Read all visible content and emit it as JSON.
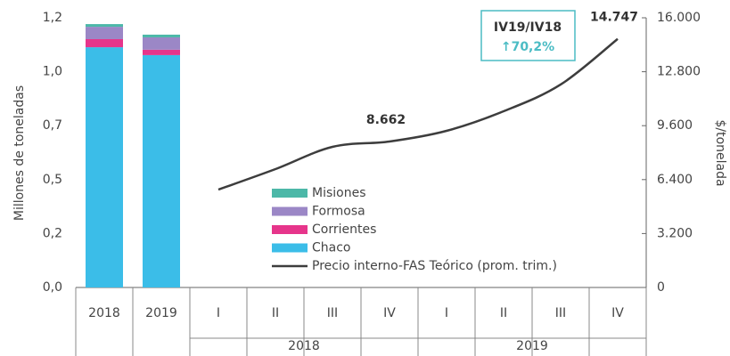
{
  "chart_data": {
    "type": "bar",
    "categories": [
      "2018",
      "2019",
      "I",
      "II",
      "III",
      "IV",
      "I",
      "II",
      "III",
      "IV"
    ],
    "groups": [
      {
        "label": "2018",
        "from": 2,
        "to": 5
      },
      {
        "label": "2019",
        "from": 6,
        "to": 9
      }
    ],
    "series": [
      {
        "name": "Chaco",
        "color": "#3bbde8",
        "values": [
          1.069,
          1.034,
          null,
          null,
          null,
          null,
          null,
          null,
          null,
          null
        ]
      },
      {
        "name": "Corrientes",
        "color": "#e6358b",
        "values": [
          0.036,
          0.024,
          null,
          null,
          null,
          null,
          null,
          null,
          null,
          null
        ]
      },
      {
        "name": "Formosa",
        "color": "#9b87c6",
        "values": [
          0.055,
          0.055,
          null,
          null,
          null,
          null,
          null,
          null,
          null,
          null
        ]
      },
      {
        "name": "Misiones",
        "color": "#4cb8a8",
        "values": [
          0.012,
          0.012,
          null,
          null,
          null,
          null,
          null,
          null,
          null,
          null
        ]
      },
      {
        "name": "Precio interno-FAS Teórico (prom. trim.)",
        "type": "line",
        "axis": "y2",
        "color": "#3d3d3d",
        "values": [
          null,
          null,
          5808,
          7023,
          8343,
          8662,
          9294,
          10455,
          12040,
          14747
        ],
        "value_labels": [
          null,
          null,
          null,
          null,
          null,
          "8.662",
          null,
          null,
          null,
          "14.747"
        ]
      }
    ],
    "ylabel": "Millones de toneladas",
    "y2label": "$/tonelada",
    "ylim": [
      0,
      1.2
    ],
    "yticks": [
      {
        "value": 0,
        "label": "0,0"
      },
      {
        "value": 0.24,
        "label": "0,2"
      },
      {
        "value": 0.48,
        "label": "0,5"
      },
      {
        "value": 0.72,
        "label": "0,7"
      },
      {
        "value": 0.96,
        "label": "1,0"
      },
      {
        "value": 1.2,
        "label": "1,2"
      }
    ],
    "y2lim": [
      0,
      16000
    ],
    "y2ticks": [
      0,
      {
        "value": 3200,
        "label": "3.200"
      },
      {
        "value": 6400,
        "label": "6.400"
      },
      {
        "value": 9600,
        "label": "9.600"
      },
      {
        "value": 12800,
        "label": "12.800"
      },
      {
        "value": 16000,
        "label": "16.000"
      }
    ],
    "annotation": {
      "title": "IV19/IV18",
      "text": "↑70,2%"
    },
    "legend": "center"
  }
}
